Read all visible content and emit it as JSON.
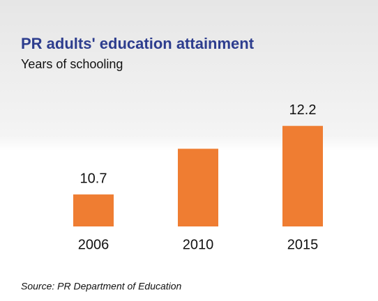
{
  "chart_data": {
    "type": "bar",
    "title": "PR adults' education attainment",
    "subtitle": "Years of schooling",
    "categories": [
      "2006",
      "2010",
      "2015"
    ],
    "values": [
      10.7,
      11.7,
      12.2
    ],
    "value_labels": [
      "10.7",
      null,
      "12.2"
    ],
    "color": "#ef7d32",
    "ylim": [
      10,
      12.5
    ],
    "source": "Source: PR Department of Education"
  }
}
